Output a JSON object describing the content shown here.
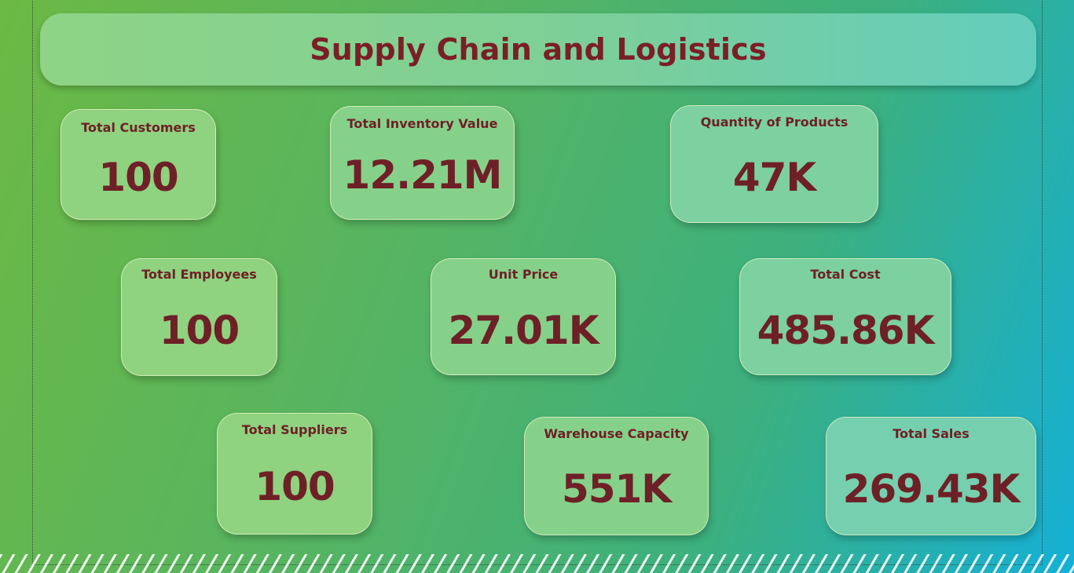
{
  "title": "Supply Chain and Logistics",
  "cards": [
    {
      "label": "Total Customers",
      "value": "100"
    },
    {
      "label": "Total Inventory Value",
      "value": "12.21M"
    },
    {
      "label": "Quantity of Products",
      "value": "47K"
    },
    {
      "label": "Total Employees",
      "value": "100"
    },
    {
      "label": "Unit Price",
      "value": "27.01K"
    },
    {
      "label": "Total Cost",
      "value": "485.86K"
    },
    {
      "label": "Total Suppliers",
      "value": "100"
    },
    {
      "label": "Warehouse Capacity",
      "value": "551K"
    },
    {
      "label": "Total Sales",
      "value": "269.43K"
    }
  ],
  "colors": {
    "text": "#6e2027",
    "title_text": "#7a1f26",
    "background_start": "#6cb944",
    "background_end": "#14b0d6"
  }
}
